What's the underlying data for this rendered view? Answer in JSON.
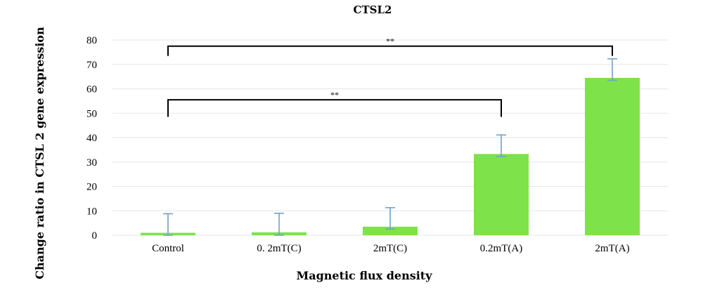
{
  "chart_data": {
    "type": "bar",
    "title": "CTSL2",
    "xlabel": "Magnetic flux density",
    "ylabel": "Change ratio in CTSL 2 gene expression",
    "categories": [
      "Control",
      "0. 2mT(C)",
      "2mT(C)",
      "0.2mT(A)",
      "2mT(A)"
    ],
    "values": [
      1,
      1.2,
      3.5,
      33.3,
      64.5
    ],
    "error_upper": [
      7.8,
      7.8,
      7.8,
      7.8,
      7.8
    ],
    "error_lower": [
      1,
      1.2,
      1,
      1,
      1
    ],
    "ylim": [
      0,
      80
    ],
    "yticks": [
      0,
      10,
      20,
      30,
      40,
      50,
      60,
      70,
      80
    ],
    "grid": true,
    "legend": "none",
    "bar_color": "#7ee24a",
    "error_color": "#6fa2c8",
    "significance": [
      {
        "from": 0,
        "to": 4,
        "label": "**",
        "y": 77.5,
        "drop_left": 73.5,
        "drop_right": 73.5
      },
      {
        "from": 0,
        "to": 3,
        "label": "**",
        "y": 55.5,
        "drop_left": 48.5,
        "drop_right": 48.5
      }
    ]
  }
}
